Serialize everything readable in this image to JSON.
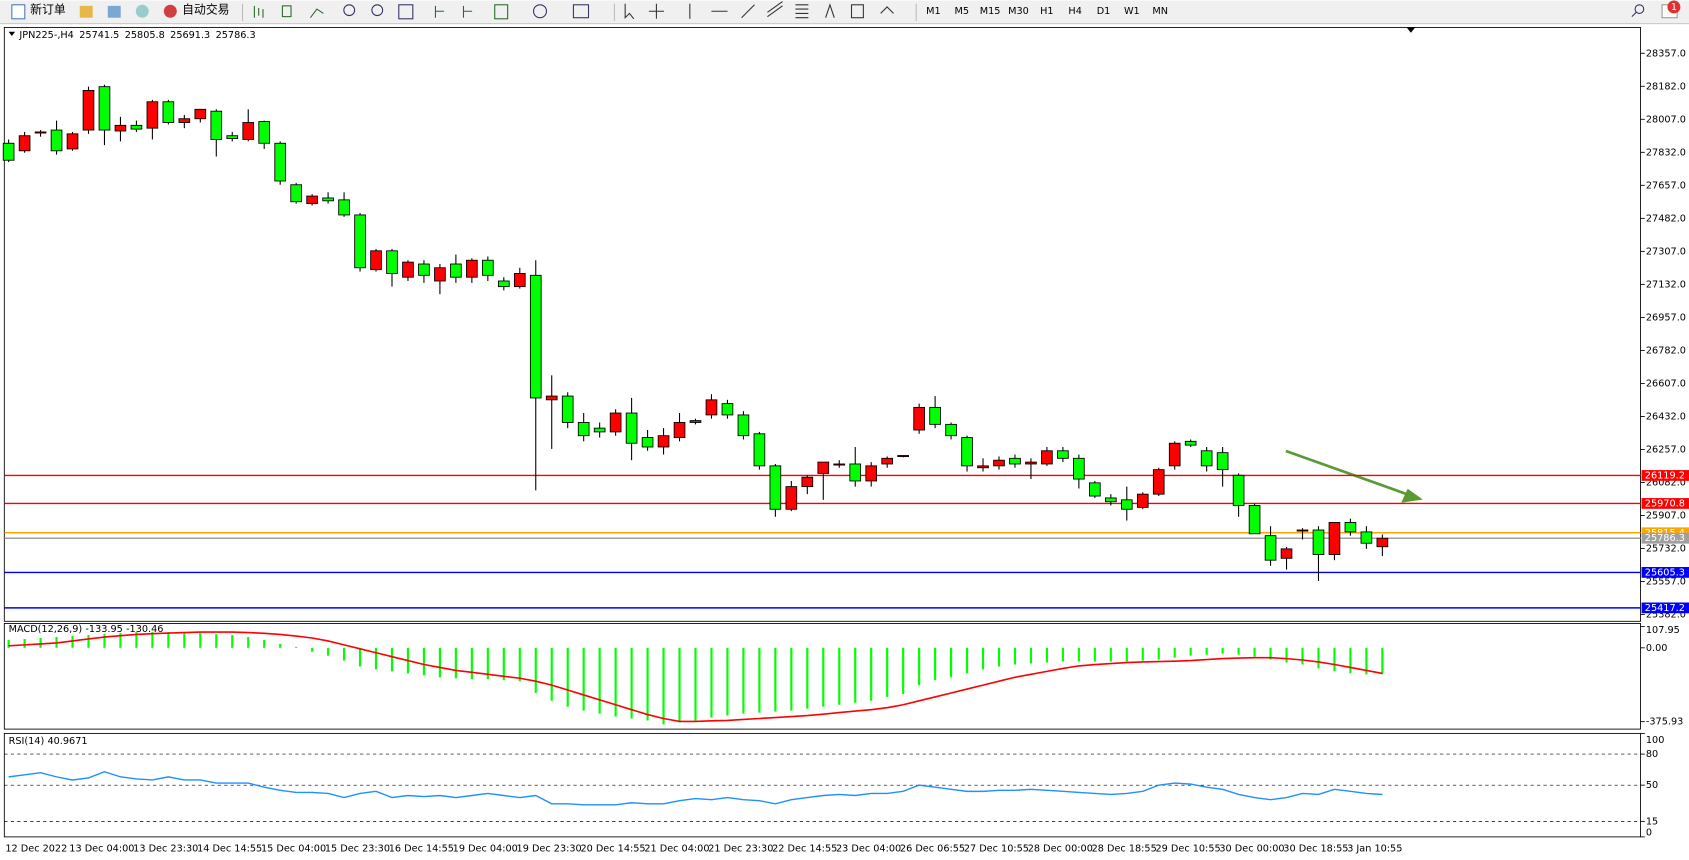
{
  "toolbar": {
    "new_order": "新订单",
    "auto_trading": "自动交易",
    "timeframes": [
      "M1",
      "M5",
      "M15",
      "M30",
      "H1",
      "H4",
      "D1",
      "W1",
      "MN"
    ],
    "badge": "1"
  },
  "chart_data": [
    {
      "type": "candlestick",
      "title": "JPN225-,H4",
      "x": [
        "12 Dec 2022",
        null,
        null,
        null,
        "13 Dec 04:00",
        null,
        null,
        null,
        "13 Dec 23:30",
        null,
        null,
        null,
        "14 Dec 14:55",
        null,
        null,
        null,
        "15 Dec 04:00",
        null,
        null,
        null,
        "15 Dec 23:30",
        null,
        null,
        null,
        "16 Dec 14:55",
        null,
        null,
        null,
        "19 Dec 04:00",
        null,
        null,
        null,
        "19 Dec 23:30",
        null,
        null,
        null,
        "20 Dec 14:55",
        null,
        null,
        null,
        "21 Dec 04:00",
        null,
        null,
        null,
        "21 Dec 23:30",
        null,
        null,
        null,
        "22 Dec 14:55",
        null,
        null,
        null,
        "23 Dec 04:00",
        null,
        null,
        null,
        "26 Dec 06:55",
        null,
        null,
        null,
        "27 Dec 10:55",
        null,
        null,
        null,
        "28 Dec 00:00",
        null,
        null,
        null,
        "28 Dec 18:55",
        null,
        null,
        null,
        "29 Dec 10:55",
        null,
        null,
        null,
        "30 Dec 00:00",
        null,
        null,
        null,
        "30 Dec 18:55",
        null,
        null,
        null,
        "3 Jan 10:55",
        null,
        null
      ],
      "open": [
        27880,
        27840,
        27935,
        27950,
        27850,
        27950,
        28180,
        27945,
        27975,
        27960,
        28100,
        27990,
        28010,
        28050,
        27920,
        27900,
        27995,
        27880,
        27660,
        27560,
        27590,
        27580,
        27500,
        27210,
        27310,
        27170,
        27240,
        27150,
        27240,
        27170,
        27260,
        27150,
        27120,
        27180,
        26520,
        26540,
        26400,
        26370,
        26350,
        26450,
        26320,
        26270,
        26320,
        26400,
        26440,
        26500,
        26440,
        26340,
        26170,
        25940,
        26060,
        26130,
        26180,
        26180,
        26090,
        26180,
        26220,
        26360,
        26480,
        26390,
        26320,
        26160,
        26170,
        26210,
        26180,
        26180,
        26250,
        26210,
        26080,
        26000,
        25990,
        25950,
        26020,
        26170,
        26300,
        26250,
        26240,
        26120,
        25960,
        25800,
        25680,
        25830,
        25830,
        25700,
        25870,
        25820,
        25741.5
      ],
      "high": [
        27900,
        27940,
        27950,
        28000,
        27940,
        28180,
        28190,
        28020,
        28000,
        28110,
        28110,
        28030,
        28060,
        28060,
        27940,
        28060,
        28000,
        27890,
        27670,
        27610,
        27620,
        27620,
        27510,
        27320,
        27320,
        27260,
        27260,
        27240,
        27290,
        27270,
        27280,
        27170,
        27220,
        27260,
        26650,
        26560,
        26450,
        26400,
        26470,
        26530,
        26360,
        26370,
        26450,
        26420,
        26550,
        26520,
        26460,
        26350,
        26180,
        26090,
        26120,
        26190,
        26200,
        26270,
        26190,
        26220,
        26225,
        26500,
        26540,
        26400,
        26330,
        26210,
        26220,
        26230,
        26210,
        26270,
        26270,
        26230,
        26090,
        26020,
        26060,
        26030,
        26160,
        26300,
        26310,
        26270,
        26270,
        26130,
        25970,
        25850,
        25740,
        25840,
        25850,
        25870,
        25890,
        25850,
        25805.8
      ],
      "low": [
        27780,
        27830,
        27915,
        27820,
        27840,
        27930,
        27870,
        27890,
        27940,
        27900,
        27980,
        27960,
        27990,
        27810,
        27890,
        27890,
        27850,
        27660,
        27560,
        27550,
        27560,
        27490,
        27200,
        27200,
        27120,
        27150,
        27140,
        27080,
        27140,
        27140,
        27150,
        27100,
        27110,
        26040,
        26260,
        26370,
        26300,
        26320,
        26330,
        26200,
        26250,
        26230,
        26300,
        26390,
        26420,
        26420,
        26310,
        26150,
        25900,
        25930,
        26020,
        25990,
        26160,
        26060,
        26060,
        26160,
        26215,
        26340,
        26370,
        26310,
        26140,
        26140,
        26150,
        26160,
        26100,
        26170,
        26190,
        26050,
        26000,
        25960,
        25880,
        25940,
        26010,
        26150,
        26270,
        26140,
        26060,
        25900,
        25810,
        25640,
        25620,
        25780,
        25560,
        25670,
        25800,
        25730,
        25691.3
      ],
      "close": [
        27790,
        27920,
        27940,
        27840,
        27930,
        28160,
        27950,
        27975,
        27955,
        28100,
        27990,
        28010,
        28060,
        27900,
        27905,
        27990,
        27880,
        27680,
        27570,
        27600,
        27575,
        27500,
        27220,
        27310,
        27190,
        27250,
        27180,
        27220,
        27170,
        27260,
        27180,
        27120,
        27190,
        26530,
        26540,
        26400,
        26330,
        26350,
        26450,
        26290,
        26270,
        26330,
        26400,
        26410,
        26520,
        26440,
        26330,
        26170,
        25940,
        26060,
        26110,
        26190,
        26180,
        26090,
        26170,
        26210,
        26225,
        26480,
        26390,
        26330,
        26170,
        26170,
        26200,
        26180,
        26190,
        26250,
        26210,
        26100,
        26010,
        25980,
        25940,
        26020,
        26150,
        26290,
        26280,
        26170,
        26150,
        25960,
        25810,
        25670,
        25730,
        25830,
        25700,
        25870,
        25820,
        25760,
        25786.3
      ],
      "up_color": "#ff0000",
      "down_color": "#00ff00",
      "ylim": [
        25346,
        28494
      ],
      "yticks": [
        {
          "value": 28357,
          "label": "28357.0"
        },
        {
          "value": 28182,
          "label": "28182.0"
        },
        {
          "value": 28007,
          "label": "28007.0"
        },
        {
          "value": 27832,
          "label": "27832.0"
        },
        {
          "value": 27657,
          "label": "27657.0"
        },
        {
          "value": 27482,
          "label": "27482.0"
        },
        {
          "value": 27307,
          "label": "27307.0"
        },
        {
          "value": 27132,
          "label": "27132.0"
        },
        {
          "value": 26957,
          "label": "26957.0"
        },
        {
          "value": 26782,
          "label": "26782.0"
        },
        {
          "value": 26607,
          "label": "26607.0"
        },
        {
          "value": 26432,
          "label": "26432.0"
        },
        {
          "value": 26257,
          "label": "26257.0"
        },
        {
          "value": 26082,
          "label": "26082.0"
        },
        {
          "value": 25907,
          "label": "25907.0"
        },
        {
          "value": 25732,
          "label": "25732.0"
        },
        {
          "value": 25557,
          "label": "25557.0"
        },
        {
          "value": 25382,
          "label": "25382.0"
        }
      ],
      "levels": [
        {
          "value": 26119.2,
          "color": "#ff0000"
        },
        {
          "value": 25970.8,
          "color": "#ff0000"
        },
        {
          "value": 25815.4,
          "color": "#ffa500"
        },
        {
          "value": 25786.3,
          "color": "#a0a0a0"
        },
        {
          "value": 25605.3,
          "color": "#0000ff"
        },
        {
          "value": 25417.2,
          "color": "#0000ff"
        }
      ]
    },
    {
      "type": "macd",
      "title": "MACD(12,26,9)",
      "histogram": [
        40,
        45,
        50,
        55,
        60,
        65,
        70,
        75,
        80,
        80,
        80,
        80,
        75,
        70,
        65,
        55,
        40,
        20,
        5,
        -20,
        -40,
        -65,
        -95,
        -110,
        -120,
        -130,
        -140,
        -150,
        -155,
        -160,
        -160,
        -165,
        -170,
        -230,
        -270,
        -300,
        -320,
        -335,
        -350,
        -360,
        -370,
        -390,
        -380,
        -370,
        -355,
        -345,
        -335,
        -330,
        -325,
        -320,
        -310,
        -300,
        -290,
        -280,
        -270,
        -250,
        -235,
        -190,
        -165,
        -150,
        -130,
        -110,
        -95,
        -85,
        -80,
        -75,
        -70,
        -70,
        -70,
        -70,
        -70,
        -65,
        -60,
        -50,
        -40,
        -35,
        -30,
        -35,
        -45,
        -60,
        -75,
        -85,
        -105,
        -120,
        -130,
        -135,
        -133.95
      ],
      "signal": [
        10,
        15,
        20,
        25,
        35,
        45,
        55,
        62,
        68,
        72,
        75,
        78,
        80,
        80,
        80,
        78,
        74,
        68,
        60,
        50,
        35,
        15,
        -5,
        -25,
        -45,
        -65,
        -85,
        -100,
        -115,
        -125,
        -135,
        -145,
        -155,
        -170,
        -190,
        -215,
        -240,
        -265,
        -290,
        -315,
        -340,
        -360,
        -375,
        -375,
        -372,
        -370,
        -365,
        -360,
        -355,
        -350,
        -345,
        -338,
        -330,
        -322,
        -315,
        -305,
        -290,
        -270,
        -250,
        -230,
        -210,
        -190,
        -170,
        -150,
        -135,
        -120,
        -105,
        -92,
        -85,
        -80,
        -75,
        -72,
        -70,
        -68,
        -65,
        -60,
        -55,
        -52,
        -50,
        -50,
        -55,
        -62,
        -72,
        -85,
        -100,
        -115,
        -130.46
      ],
      "histogram_color": "#00ff00",
      "signal_color": "#ff0000",
      "ylim": [
        -414,
        124
      ],
      "yticks": [
        107.95,
        {
          "value": 0,
          "label": "0.00"
        },
        -375.93
      ]
    },
    {
      "type": "line",
      "title": "RSI(14)",
      "values": [
        58,
        60,
        62,
        58,
        55,
        57,
        63,
        58,
        56,
        55,
        58,
        55,
        55,
        52,
        52,
        52,
        48,
        45,
        43,
        43,
        42,
        38,
        42,
        44,
        38,
        40,
        39,
        40,
        38,
        40,
        42,
        40,
        38,
        40,
        32,
        32,
        31,
        31,
        31,
        33,
        32,
        32,
        35,
        37,
        36,
        38,
        36,
        35,
        32,
        36,
        38,
        40,
        41,
        40,
        42,
        42,
        44,
        50,
        48,
        46,
        44,
        44,
        45,
        45,
        46,
        45,
        44,
        43,
        42,
        41,
        42,
        44,
        50,
        52,
        51,
        48,
        46,
        41,
        38,
        36,
        38,
        42,
        41,
        46,
        44,
        42,
        40.9671
      ],
      "color": "#1e90ff",
      "ylim": [
        0,
        100
      ],
      "yticks": [
        100,
        80,
        50,
        15,
        0
      ],
      "dashed_grid": true
    }
  ]
}
